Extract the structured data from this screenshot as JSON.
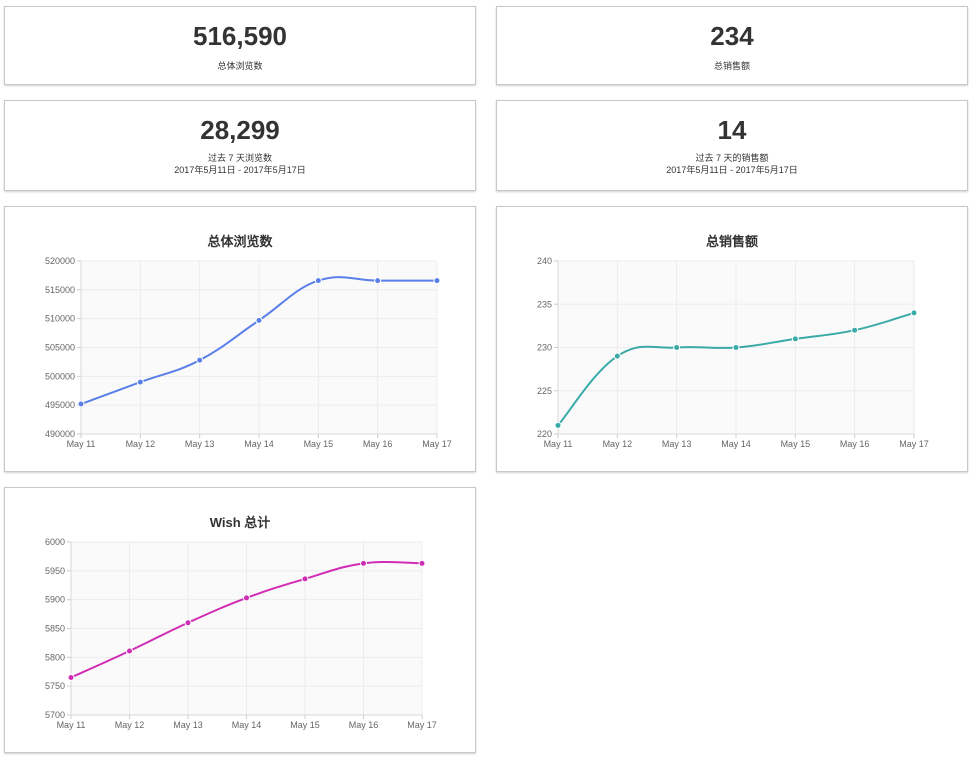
{
  "stats": {
    "total_views": {
      "value": "516,590",
      "label": "总体浏览数"
    },
    "total_sales": {
      "value": "234",
      "label": "总销售额"
    },
    "views_7d": {
      "value": "28,299",
      "label": "过去 7 天浏览数",
      "range": "2017年5月11日 - 2017年5月17日"
    },
    "sales_7d": {
      "value": "14",
      "label": "过去 7 天的销售额",
      "range": "2017年5月11日 - 2017年5月17日"
    }
  },
  "chart_data": [
    {
      "type": "line",
      "title": "总体浏览数",
      "x": [
        "May 11",
        "May 12",
        "May 13",
        "May 14",
        "May 15",
        "May 16",
        "May 17"
      ],
      "series": [
        {
          "values": [
            495200,
            499000,
            502800,
            509700,
            516600,
            516600,
            516600
          ],
          "color": "#5b7fe8"
        }
      ],
      "ylim": [
        490000,
        520000
      ],
      "yticks": [
        490000,
        495000,
        500000,
        505000,
        510000,
        515000,
        520000
      ],
      "grid": true
    },
    {
      "type": "line",
      "title": "总销售额",
      "x": [
        "May 11",
        "May 12",
        "May 13",
        "May 14",
        "May 15",
        "May 16",
        "May 17"
      ],
      "series": [
        {
          "values": [
            221,
            229,
            230,
            230,
            231,
            232,
            234
          ],
          "color": "#3aaaa8"
        }
      ],
      "ylim": [
        220,
        240
      ],
      "yticks": [
        220,
        225,
        230,
        235,
        240
      ],
      "grid": true
    },
    {
      "type": "line",
      "title": "Wish 总计",
      "x": [
        "May 11",
        "May 12",
        "May 13",
        "May 14",
        "May 15",
        "May 16",
        "May 17"
      ],
      "series": [
        {
          "values": [
            5765,
            5811,
            5860,
            5903,
            5936,
            5963,
            5963
          ],
          "color": "#d12cb4"
        }
      ],
      "ylim": [
        5700,
        6000
      ],
      "yticks": [
        5700,
        5750,
        5800,
        5850,
        5900,
        5950,
        6000
      ],
      "grid": true
    }
  ]
}
